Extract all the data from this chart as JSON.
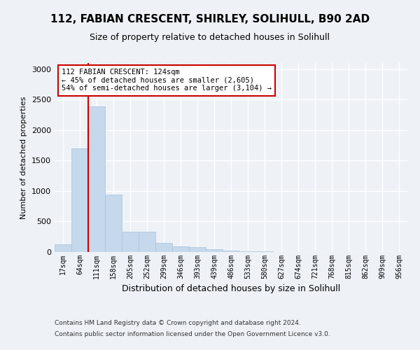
{
  "title_line1": "112, FABIAN CRESCENT, SHIRLEY, SOLIHULL, B90 2AD",
  "title_line2": "Size of property relative to detached houses in Solihull",
  "xlabel": "Distribution of detached houses by size in Solihull",
  "ylabel": "Number of detached properties",
  "footer_line1": "Contains HM Land Registry data © Crown copyright and database right 2024.",
  "footer_line2": "Contains public sector information licensed under the Open Government Licence v3.0.",
  "bar_labels": [
    "17sqm",
    "64sqm",
    "111sqm",
    "158sqm",
    "205sqm",
    "252sqm",
    "299sqm",
    "346sqm",
    "393sqm",
    "439sqm",
    "486sqm",
    "533sqm",
    "580sqm",
    "627sqm",
    "674sqm",
    "721sqm",
    "768sqm",
    "815sqm",
    "862sqm",
    "909sqm",
    "956sqm"
  ],
  "bar_values": [
    130,
    1700,
    2390,
    940,
    330,
    330,
    150,
    95,
    75,
    50,
    25,
    10,
    10,
    0,
    0,
    0,
    0,
    0,
    0,
    0,
    0
  ],
  "bar_color": "#c5d8ec",
  "bar_edgecolor": "#a8c4dc",
  "property_line_color": "#cc0000",
  "annotation_text": "112 FABIAN CRESCENT: 124sqm\n← 45% of detached houses are smaller (2,605)\n54% of semi-detached houses are larger (3,104) →",
  "annotation_box_color": "#ffffff",
  "annotation_box_edgecolor": "#cc0000",
  "ylim": [
    0,
    3100
  ],
  "yticks": [
    0,
    500,
    1000,
    1500,
    2000,
    2500,
    3000
  ],
  "background_color": "#eef2f7",
  "grid_color": "#ffffff",
  "title_fontsize": 11,
  "subtitle_fontsize": 9,
  "ylabel_fontsize": 8,
  "xlabel_fontsize": 9,
  "tick_fontsize": 7,
  "footer_fontsize": 6.5
}
